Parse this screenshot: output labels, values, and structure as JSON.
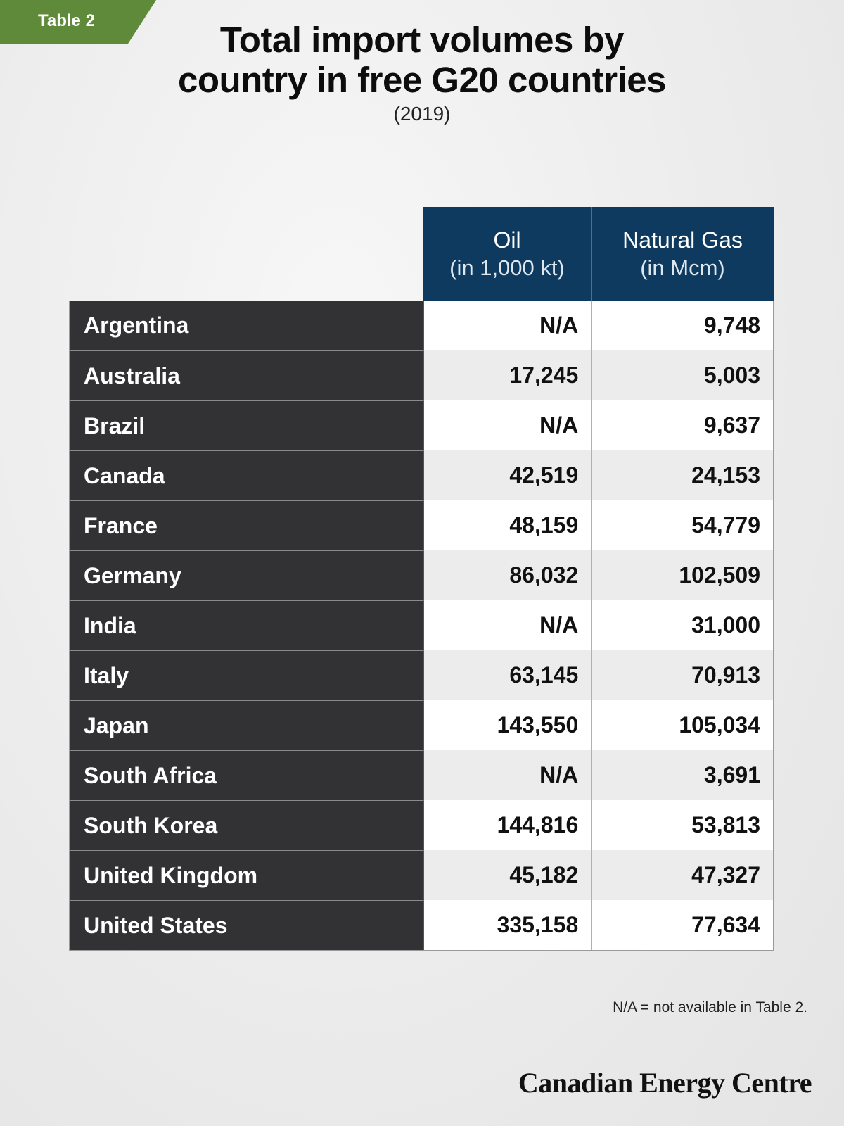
{
  "tag": {
    "label": "Table 2",
    "color": "#5e8a3a"
  },
  "title_line1": "Total import volumes by",
  "title_line2": "country in free G20 countries",
  "subtitle": "(2019)",
  "columns": [
    {
      "name": "Oil",
      "unit": "(in 1,000 kt)"
    },
    {
      "name": "Natural Gas",
      "unit": "(in Mcm)"
    }
  ],
  "chart_data": {
    "type": "table",
    "title": "Total import volumes by country in free G20 countries",
    "subtitle": "(2019)",
    "columns": [
      "Oil (in 1,000 kt)",
      "Natural Gas (in Mcm)"
    ],
    "rows": [
      {
        "country": "Argentina",
        "oil": "N/A",
        "gas": "9,748"
      },
      {
        "country": "Australia",
        "oil": "17,245",
        "gas": "5,003"
      },
      {
        "country": "Brazil",
        "oil": "N/A",
        "gas": "9,637"
      },
      {
        "country": "Canada",
        "oil": "42,519",
        "gas": "24,153"
      },
      {
        "country": "France",
        "oil": "48,159",
        "gas": "54,779"
      },
      {
        "country": "Germany",
        "oil": "86,032",
        "gas": "102,509"
      },
      {
        "country": "India",
        "oil": "N/A",
        "gas": "31,000"
      },
      {
        "country": "Italy",
        "oil": "63,145",
        "gas": "70,913"
      },
      {
        "country": "Japan",
        "oil": "143,550",
        "gas": "105,034"
      },
      {
        "country": "South Africa",
        "oil": "N/A",
        "gas": "3,691"
      },
      {
        "country": "South Korea",
        "oil": "144,816",
        "gas": "53,813"
      },
      {
        "country": "United Kingdom",
        "oil": "45,182",
        "gas": "47,327"
      },
      {
        "country": "United States",
        "oil": "335,158",
        "gas": "77,634"
      }
    ]
  },
  "footnote": "N/A = not available in Table 2.",
  "logo": "Canadian Energy Centre",
  "colors": {
    "header": "#0e3a5f",
    "country_cell": "#323234",
    "accent": "#5e8a3a"
  }
}
